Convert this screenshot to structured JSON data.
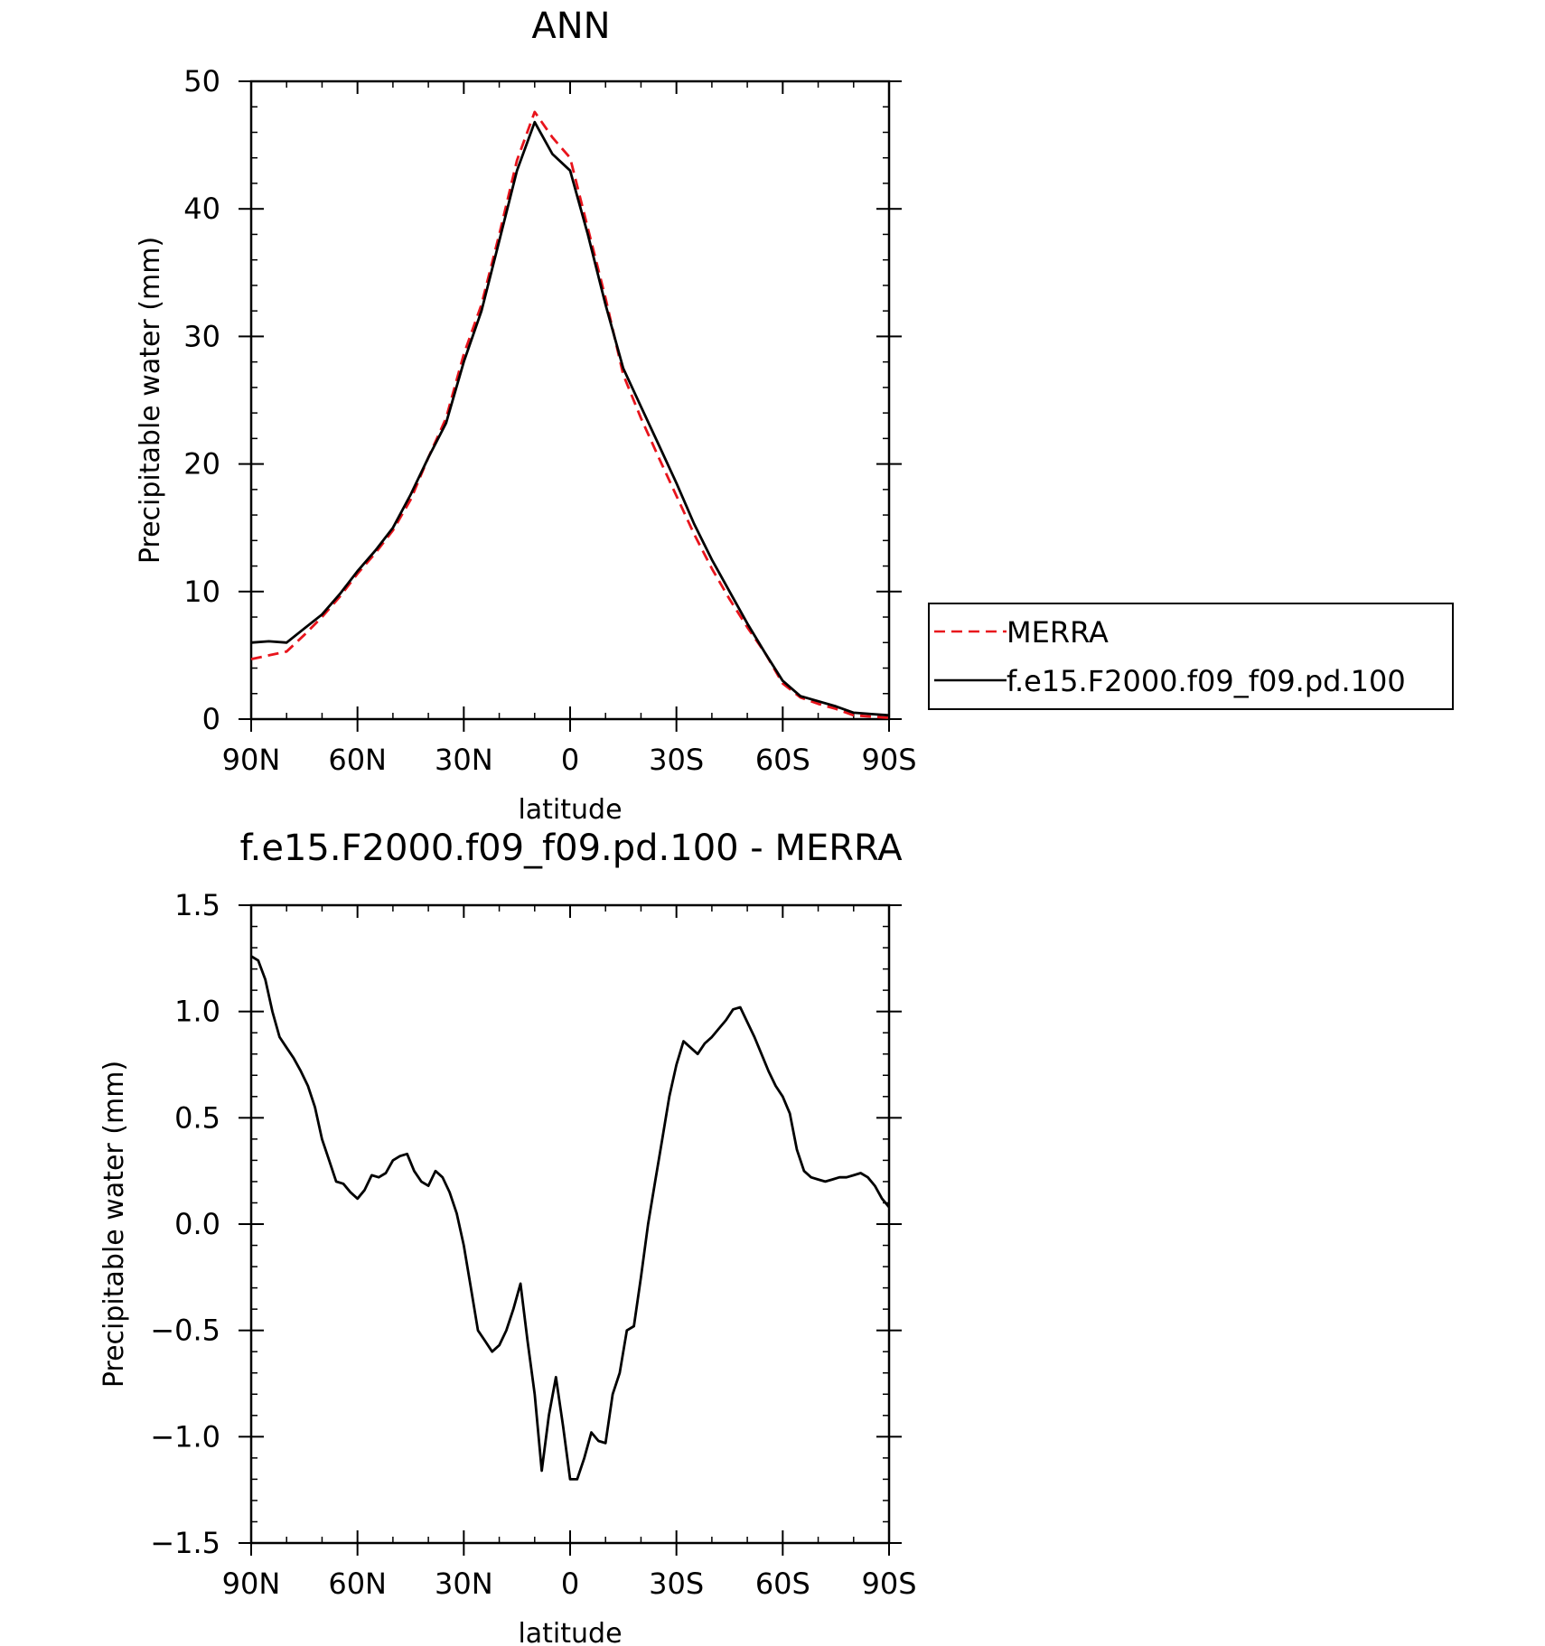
{
  "chart_data": [
    {
      "type": "line",
      "title": "ANN",
      "xlabel": "latitude",
      "ylabel": "Precipitable water (mm)",
      "x_tick_labels": [
        "90N",
        "60N",
        "30N",
        "0",
        "30S",
        "60S",
        "90S"
      ],
      "y_tick_labels": [
        "0",
        "10",
        "20",
        "30",
        "40",
        "50"
      ],
      "x_ticks": [
        90,
        60,
        30,
        0,
        -30,
        -60,
        -90
      ],
      "y_ticks": [
        0,
        10,
        20,
        30,
        40,
        50
      ],
      "xlim": [
        90,
        -90
      ],
      "ylim": [
        0,
        50
      ],
      "legend_position": "right",
      "x": [
        90,
        85,
        80,
        75,
        70,
        65,
        60,
        55,
        50,
        45,
        40,
        35,
        30,
        25,
        20,
        15,
        10,
        5,
        0,
        -5,
        -10,
        -15,
        -20,
        -25,
        -30,
        -35,
        -40,
        -45,
        -50,
        -55,
        -60,
        -65,
        -70,
        -75,
        -80,
        -85,
        -90
      ],
      "series": [
        {
          "name": "MERRA",
          "color": "#e8141c",
          "dash": "dashed",
          "values": [
            4.7,
            5.0,
            5.3,
            6.6,
            8.0,
            9.6,
            11.4,
            13.0,
            14.8,
            17.2,
            20.5,
            23.6,
            28.6,
            32.5,
            38.0,
            43.8,
            47.6,
            45.6,
            44.0,
            38.5,
            33.0,
            27.0,
            23.6,
            20.5,
            17.5,
            14.5,
            11.8,
            9.4,
            7.2,
            5.2,
            2.8,
            1.7,
            1.2,
            0.8,
            0.3,
            0.2,
            0.1
          ]
        },
        {
          "name": "f.e15.F2000.f09_f09.pd.100",
          "color": "#000000",
          "dash": "solid",
          "values": [
            6.0,
            6.1,
            6.0,
            7.1,
            8.2,
            9.8,
            11.6,
            13.2,
            15.0,
            17.6,
            20.5,
            23.2,
            28.0,
            32.0,
            37.5,
            43.0,
            46.8,
            44.3,
            43.0,
            38.0,
            32.5,
            27.5,
            24.5,
            21.5,
            18.5,
            15.3,
            12.5,
            10.0,
            7.5,
            5.2,
            3.0,
            1.8,
            1.4,
            1.0,
            0.5,
            0.4,
            0.3
          ]
        }
      ]
    },
    {
      "type": "line",
      "title": "f.e15.F2000.f09_f09.pd.100 - MERRA",
      "xlabel": "latitude",
      "ylabel": "Precipitable water (mm)",
      "x_tick_labels": [
        "90N",
        "60N",
        "30N",
        "0",
        "30S",
        "60S",
        "90S"
      ],
      "y_tick_labels": [
        "1.5",
        "1.0",
        "0.5",
        "0.0",
        "−0.5",
        "−1.0",
        "−1.5"
      ],
      "x_ticks": [
        90,
        60,
        30,
        0,
        -30,
        -60,
        -90
      ],
      "y_ticks": [
        1.5,
        1.0,
        0.5,
        0.0,
        -0.5,
        -1.0,
        -1.5
      ],
      "xlim": [
        90,
        -90
      ],
      "ylim": [
        -1.5,
        1.5
      ],
      "x": [
        90,
        88,
        86,
        84,
        82,
        80,
        78,
        76,
        74,
        72,
        70,
        68,
        66,
        64,
        62,
        60,
        58,
        56,
        54,
        52,
        50,
        48,
        46,
        44,
        42,
        40,
        38,
        36,
        34,
        32,
        30,
        28,
        26,
        24,
        22,
        20,
        18,
        16,
        14,
        12,
        10,
        8,
        6,
        4,
        2,
        0,
        -2,
        -4,
        -6,
        -8,
        -10,
        -12,
        -14,
        -16,
        -18,
        -20,
        -22,
        -24,
        -26,
        -28,
        -30,
        -32,
        -34,
        -36,
        -38,
        -40,
        -42,
        -44,
        -46,
        -48,
        -50,
        -52,
        -54,
        -56,
        -58,
        -60,
        -62,
        -64,
        -66,
        -68,
        -70,
        -72,
        -74,
        -76,
        -78,
        -80,
        -82,
        -84,
        -86,
        -88,
        -90
      ],
      "series": [
        {
          "name": "",
          "color": "#000000",
          "dash": "solid",
          "values": [
            1.26,
            1.24,
            1.15,
            1.0,
            0.88,
            0.83,
            0.78,
            0.72,
            0.65,
            0.55,
            0.4,
            0.3,
            0.2,
            0.19,
            0.15,
            0.12,
            0.16,
            0.23,
            0.22,
            0.24,
            0.3,
            0.32,
            0.33,
            0.25,
            0.2,
            0.18,
            0.25,
            0.22,
            0.15,
            0.05,
            -0.1,
            -0.3,
            -0.5,
            -0.55,
            -0.6,
            -0.57,
            -0.5,
            -0.4,
            -0.28,
            -0.55,
            -0.8,
            -1.16,
            -0.9,
            -0.72,
            -0.95,
            -1.2,
            -1.2,
            -1.1,
            -0.98,
            -1.02,
            -1.03,
            -0.8,
            -0.7,
            -0.5,
            -0.48,
            -0.25,
            0.0,
            0.2,
            0.4,
            0.6,
            0.75,
            0.86,
            0.83,
            0.8,
            0.85,
            0.88,
            0.92,
            0.96,
            1.01,
            1.02,
            0.95,
            0.88,
            0.8,
            0.72,
            0.65,
            0.6,
            0.52,
            0.35,
            0.25,
            0.22,
            0.21,
            0.2,
            0.21,
            0.22,
            0.22,
            0.23,
            0.24,
            0.22,
            0.18,
            0.12,
            0.08
          ]
        }
      ]
    }
  ],
  "legend": {
    "items": [
      {
        "label": "MERRA",
        "color": "#e8141c",
        "dash": "dashed"
      },
      {
        "label": "f.e15.F2000.f09_f09.pd.100",
        "color": "#000000",
        "dash": "solid"
      }
    ]
  }
}
